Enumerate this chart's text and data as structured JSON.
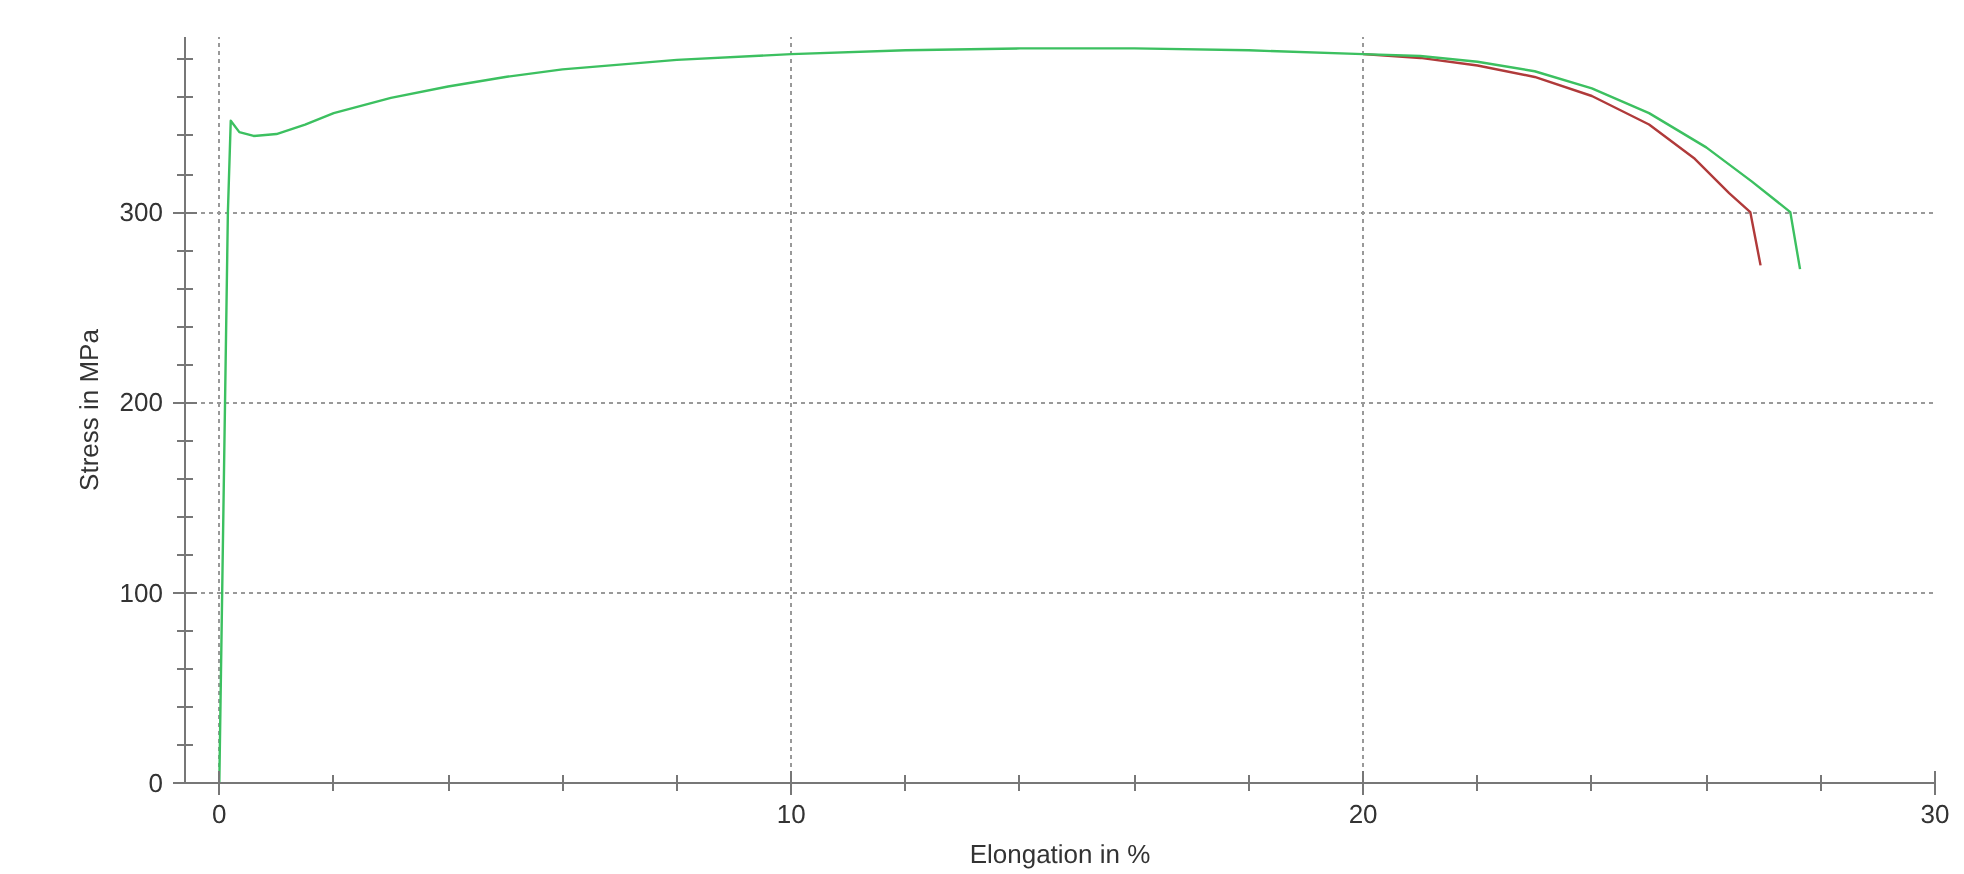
{
  "chart_data": {
    "type": "line",
    "xlabel": "Elongation in %",
    "ylabel": "Stress in MPa",
    "xlim": [
      -0.6,
      30
    ],
    "ylim": [
      0,
      392
    ],
    "xticks": [
      0,
      10,
      20,
      30
    ],
    "yticks": [
      0,
      100,
      200,
      300
    ],
    "grid": true,
    "marker": "none",
    "line_style": "solid",
    "series": [
      {
        "color": "#b03a3a",
        "x": [
          20,
          21,
          22,
          23,
          24,
          25,
          25.8,
          26.4,
          26.77,
          26.95
        ],
        "values": [
          383,
          381,
          377,
          371,
          361,
          346,
          328,
          310,
          300,
          272
        ]
      },
      {
        "color": "#3cc060",
        "x": [
          0,
          0.05,
          0.1,
          0.15,
          0.2,
          0.35,
          0.6,
          1.0,
          1.5,
          2,
          3,
          4,
          5,
          6,
          8,
          10,
          12,
          14,
          16,
          18,
          20,
          21,
          22,
          23,
          24,
          25,
          26,
          26.8,
          27.47,
          27.64
        ],
        "values": [
          0,
          100,
          200,
          300,
          348,
          342,
          340,
          341,
          346,
          352,
          360,
          366,
          371,
          375,
          380,
          383,
          385,
          386,
          386,
          385,
          383,
          382,
          379,
          374,
          365,
          352,
          334,
          316,
          300,
          270
        ]
      }
    ]
  }
}
